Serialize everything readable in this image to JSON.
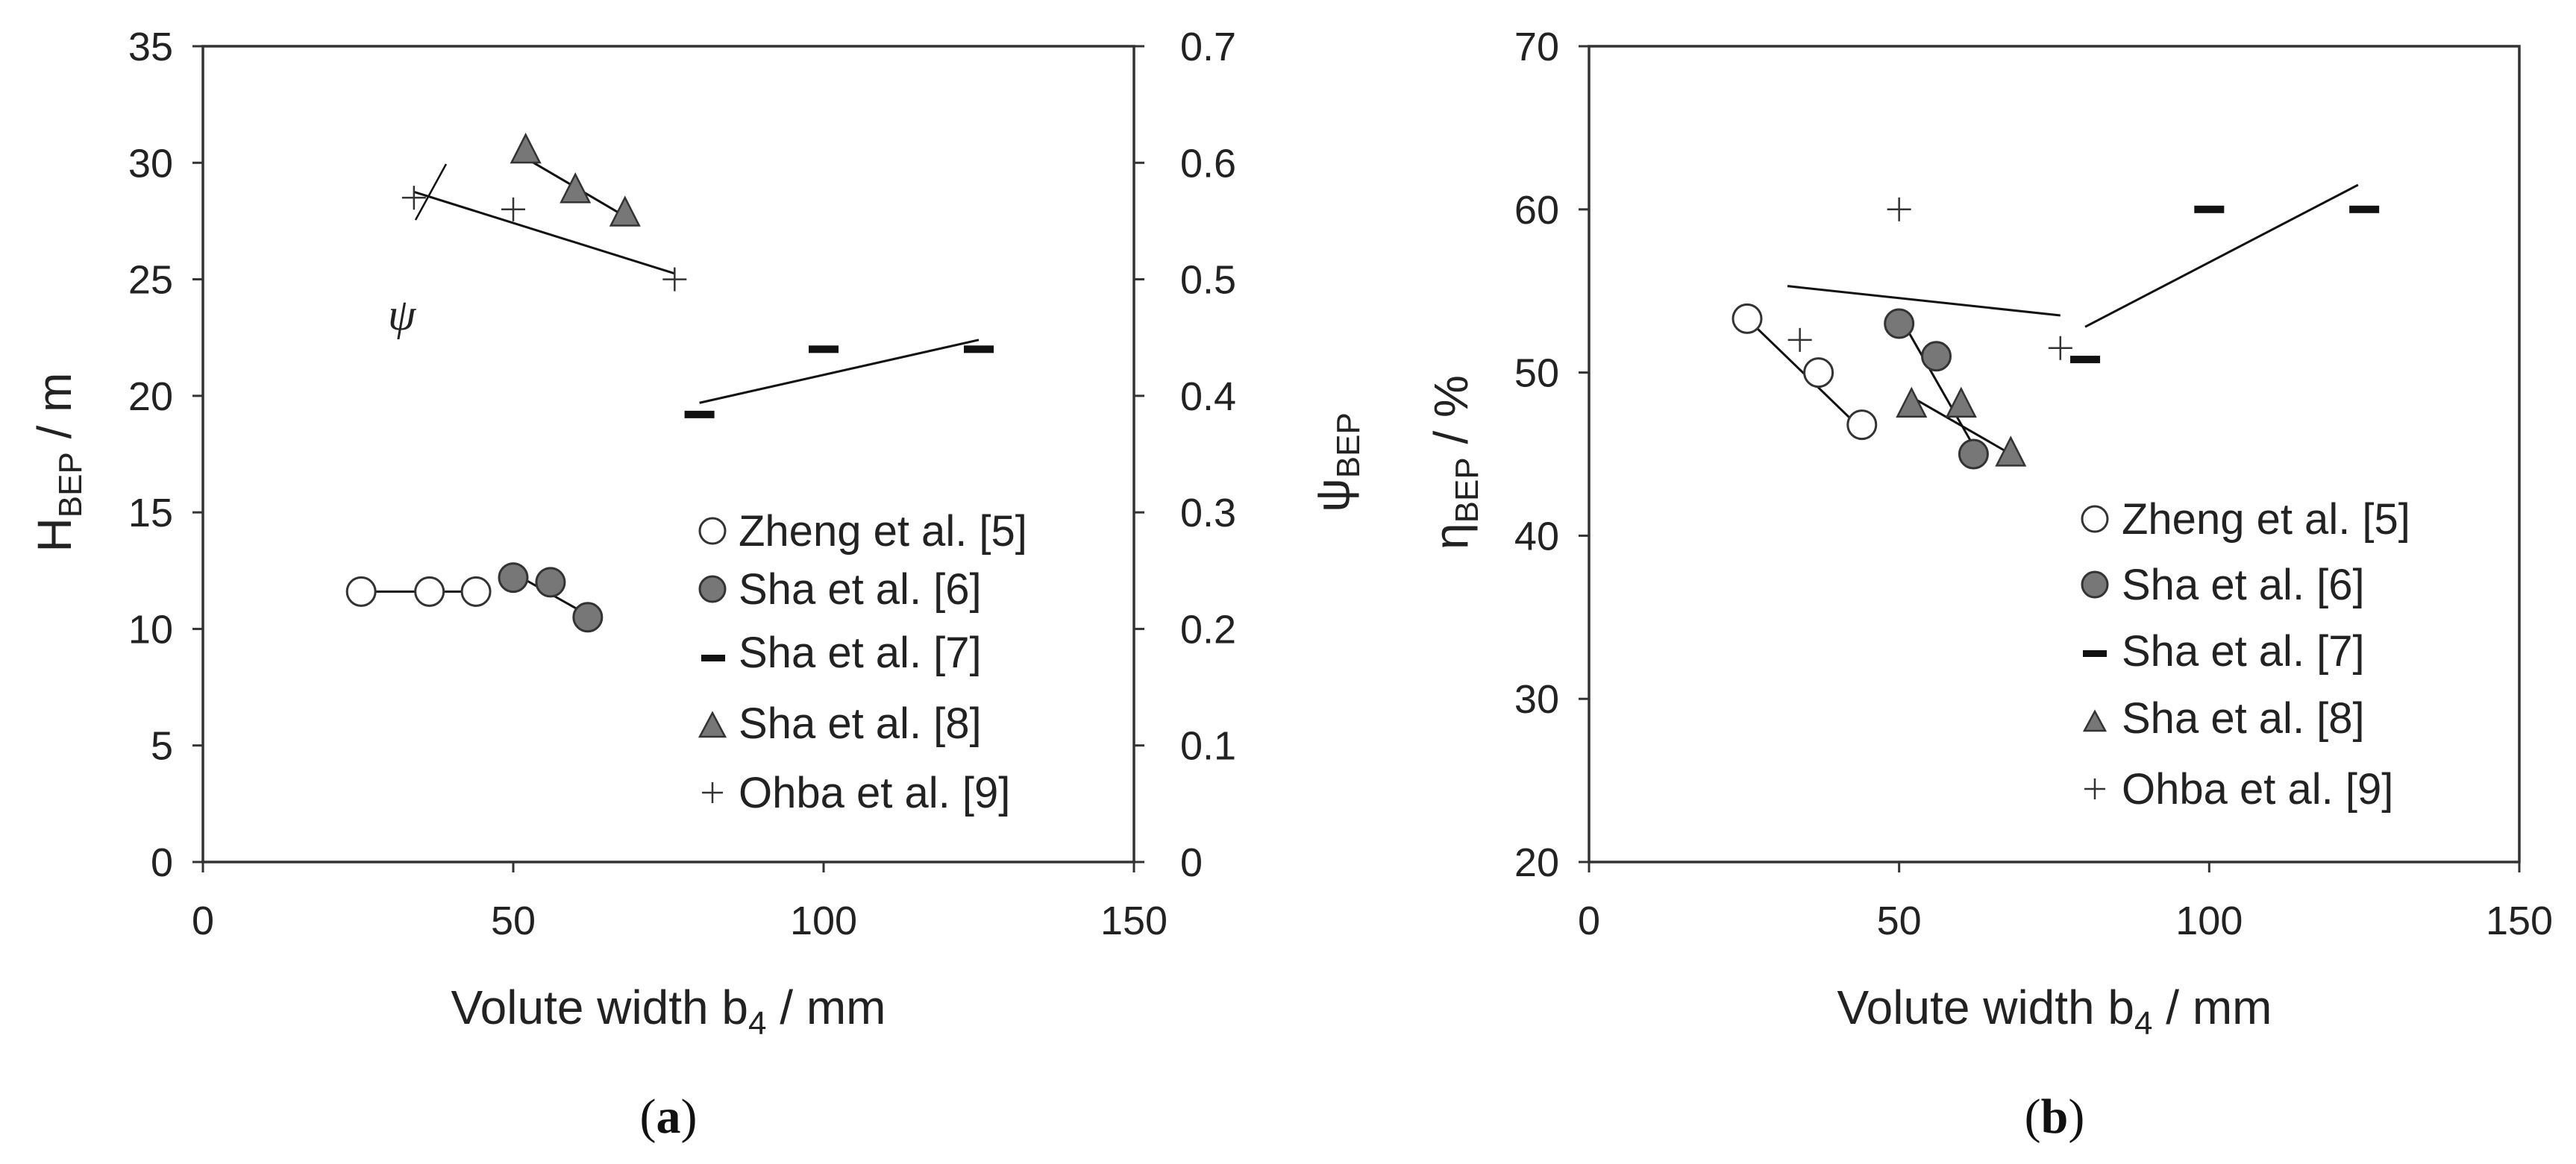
{
  "chart_data": [
    {
      "id": "a",
      "type": "scatter",
      "panel_label": "a",
      "xlabel": "Volute width  b",
      "xlabel_sub": "4",
      "xlabel_unit": " / mm",
      "ylabel": "H",
      "ylabel_sub": "BEP",
      "ylabel_unit": " / m",
      "y2label": "ψ",
      "y2label_sub": "BEP",
      "xlim": [
        0,
        150
      ],
      "ylim": [
        0,
        35
      ],
      "y2lim": [
        0,
        0.7
      ],
      "xticks": [
        "0",
        "50",
        "100",
        "150"
      ],
      "yticks": [
        "0",
        "5",
        "10",
        "15",
        "20",
        "25",
        "30",
        "35"
      ],
      "y2ticks": [
        "0",
        "0.1",
        "0.2",
        "0.3",
        "0.4",
        "0.5",
        "0.6",
        "0.7"
      ],
      "annotation": "ψ",
      "legend": [
        {
          "label": "Zheng et al. [5]",
          "marker": "open-circle"
        },
        {
          "label": "Sha et al. [6]",
          "marker": "filled-circle"
        },
        {
          "label": "Sha et al. [7]",
          "marker": "dash"
        },
        {
          "label": "Sha et al. [8]",
          "marker": "triangle"
        },
        {
          "label": "Ohba et al. [9]",
          "marker": "plus"
        }
      ],
      "series": [
        {
          "name": "Zheng et al. [5]",
          "marker": "open-circle",
          "axis": "left",
          "x": [
            25.5,
            36.5,
            44
          ],
          "y": [
            11.6,
            11.6,
            11.6
          ],
          "trend": [
            [
              25.5,
              11.6
            ],
            [
              44,
              11.6
            ]
          ]
        },
        {
          "name": "Sha et al. [6]",
          "marker": "filled-circle",
          "axis": "left",
          "x": [
            50,
            56,
            62
          ],
          "y": [
            12.2,
            12.0,
            10.5
          ],
          "trend": [
            [
              50,
              12.4
            ],
            [
              62,
              10.6
            ]
          ]
        },
        {
          "name": "Sha et al. [7]",
          "marker": "dash",
          "axis": "left",
          "x": [
            80,
            100,
            125
          ],
          "y": [
            19.2,
            22,
            22
          ],
          "trend": [
            [
              80,
              19.7
            ],
            [
              125,
              22.4
            ]
          ]
        },
        {
          "name": "Sha et al. [8]",
          "marker": "triangle",
          "axis": "left",
          "x": [
            52,
            60,
            68
          ],
          "y": [
            30.5,
            28.8,
            27.8
          ],
          "trend": [
            [
              52,
              30.2
            ],
            [
              68,
              27.7
            ]
          ]
        },
        {
          "name": "Ohba et al. [9]",
          "marker": "plus",
          "axis": "right",
          "x": [
            34,
            50,
            76
          ],
          "y": [
            0.57,
            0.56,
            0.5
          ],
          "trend": [
            [
              34,
              0.575
            ],
            [
              76,
              0.505
            ]
          ]
        }
      ]
    },
    {
      "id": "b",
      "type": "scatter",
      "panel_label": "b",
      "xlabel": "Volute width  b",
      "xlabel_sub": "4",
      "xlabel_unit": " / mm",
      "ylabel": "η",
      "ylabel_sub": "BEP",
      "ylabel_unit": " / %",
      "xlim": [
        0,
        150
      ],
      "ylim": [
        20,
        70
      ],
      "xticks": [
        "0",
        "50",
        "100",
        "150"
      ],
      "yticks": [
        "20",
        "30",
        "40",
        "50",
        "60",
        "70"
      ],
      "legend": [
        {
          "label": "Zheng et al. [5]",
          "marker": "open-circle"
        },
        {
          "label": "Sha et al. [6]",
          "marker": "filled-circle"
        },
        {
          "label": "Sha et al. [7]",
          "marker": "dash"
        },
        {
          "label": "Sha et al. [8]",
          "marker": "triangle"
        },
        {
          "label": "Ohba et al. [9]",
          "marker": "plus"
        }
      ],
      "series": [
        {
          "name": "Zheng et al. [5]",
          "marker": "open-circle",
          "x": [
            25.5,
            37,
            44
          ],
          "y": [
            53.3,
            50,
            46.8
          ],
          "trend": [
            [
              25.5,
              53.3
            ],
            [
              44,
              46.5
            ]
          ]
        },
        {
          "name": "Sha et al. [6]",
          "marker": "filled-circle",
          "x": [
            50,
            56,
            62
          ],
          "y": [
            53,
            51,
            45
          ],
          "trend": [
            [
              50,
              53.5
            ],
            [
              62,
              45.5
            ]
          ]
        },
        {
          "name": "Sha et al. [7]",
          "marker": "dash",
          "x": [
            80,
            100,
            125
          ],
          "y": [
            50.8,
            60,
            60
          ],
          "trend": [
            [
              80,
              52.8
            ],
            [
              124,
              61.5
            ]
          ]
        },
        {
          "name": "Sha et al. [8]",
          "marker": "triangle",
          "x": [
            52,
            60,
            68
          ],
          "y": [
            48,
            48,
            45
          ],
          "trend": [
            [
              52,
              48.5
            ],
            [
              68,
              45
            ]
          ]
        },
        {
          "name": "Ohba et al. [9]",
          "marker": "plus",
          "x": [
            34,
            50,
            76
          ],
          "y": [
            52,
            60,
            51.5
          ],
          "trend": [
            [
              32,
              55.3
            ],
            [
              76,
              53.5
            ]
          ]
        }
      ]
    }
  ]
}
